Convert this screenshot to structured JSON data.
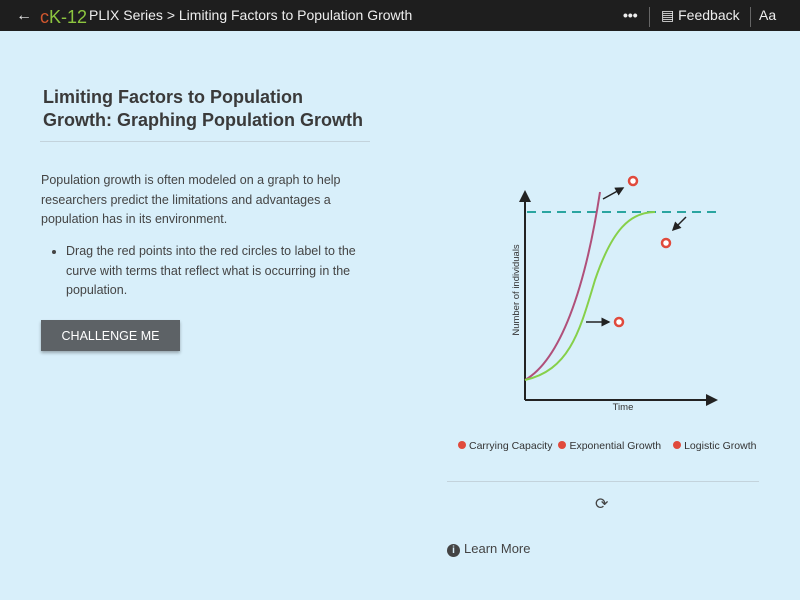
{
  "topbar": {
    "back_icon": "arrow-left-icon",
    "logo": "cK-12",
    "breadcrumb": "PLIX Series > Limiting Factors to Population Growth",
    "more_icon": "more-icon",
    "feedback": "Feedback",
    "font_size": "Aa"
  },
  "main": {
    "title": "Limiting Factors to Population Growth: Graphing Population Growth",
    "description": "Population growth is often modeled on a graph to help researchers predict the limitations and advantages a population has in its environment.",
    "instructions": [
      "Drag the red points into the red circles to label to the curve with terms that reflect what is occurring in the population."
    ],
    "challenge_button": "CHALLENGE ME",
    "learn_more": "Learn More"
  },
  "graph": {
    "y_label": "Number of individuals",
    "x_label": "Time",
    "colors": {
      "exponential": "#b0507a",
      "logistic": "#86d04a",
      "carrying_capacity": "#2aa5a0",
      "target": "#e04a3c"
    },
    "draggable_labels": [
      "Carrying Capacity",
      "Exponential Growth",
      "Logistic Growth"
    ]
  }
}
